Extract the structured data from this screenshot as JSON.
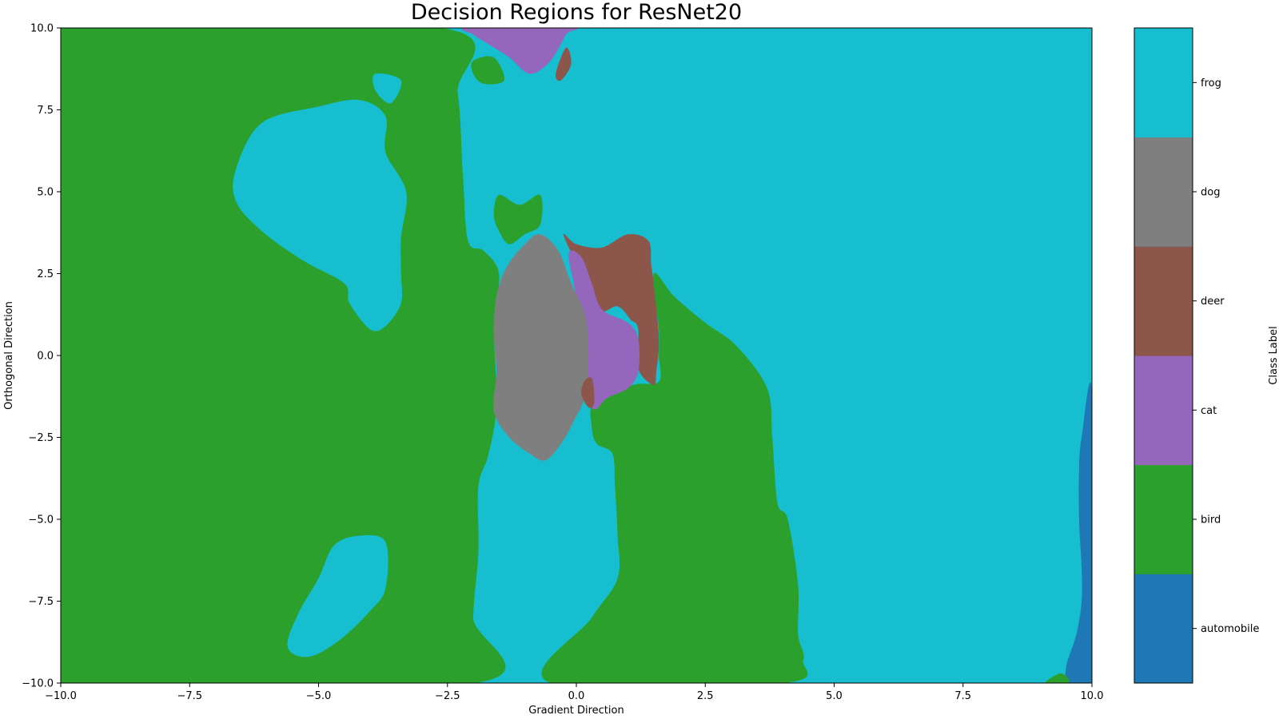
{
  "chart_data": {
    "type": "heatmap",
    "title": "Decision Regions for ResNet20",
    "xlabel": "Gradient Direction",
    "ylabel": "Orthogonal Direction",
    "xlim": [
      -10,
      10
    ],
    "ylim": [
      -10,
      10
    ],
    "xticks": [
      -10,
      -7.5,
      -5,
      -2.5,
      0,
      2.5,
      5,
      7.5,
      10
    ],
    "yticks": [
      -10,
      -7.5,
      -5,
      -2.5,
      0,
      2.5,
      5,
      7.5,
      10
    ],
    "xtick_labels": [
      "−10.0",
      "−7.5",
      "−5.0",
      "−2.5",
      "0.0",
      "2.5",
      "5.0",
      "7.5",
      "10.0"
    ],
    "ytick_labels": [
      "−10.0",
      "−7.5",
      "−5.0",
      "−2.5",
      "0.0",
      "2.5",
      "5.0",
      "7.5",
      "10.0"
    ],
    "background_class": "frog",
    "classes": [
      {
        "name": "automobile",
        "color": "#1f77b4"
      },
      {
        "name": "bird",
        "color": "#2ca02c"
      },
      {
        "name": "cat",
        "color": "#9467bd"
      },
      {
        "name": "deer",
        "color": "#8c564b"
      },
      {
        "name": "dog",
        "color": "#7f7f7f"
      },
      {
        "name": "frog",
        "color": "#17becf"
      }
    ],
    "colorbar_label": "Class Label",
    "regions": [
      {
        "class": "bird",
        "points": [
          [
            -10,
            10
          ],
          [
            -2.6,
            10
          ],
          [
            -2.3,
            8
          ],
          [
            -2.2,
            5.5
          ],
          [
            -2.1,
            3.5
          ],
          [
            -1.8,
            3.2
          ],
          [
            -1.5,
            2.5
          ],
          [
            -1.6,
            1
          ],
          [
            -1.55,
            -1.5
          ],
          [
            -1.7,
            -3
          ],
          [
            -1.9,
            -4
          ],
          [
            -1.9,
            -6
          ],
          [
            -2.0,
            -8
          ],
          [
            -1.95,
            -10
          ],
          [
            -10,
            -10
          ]
        ]
      },
      {
        "class": "frog",
        "points": [
          [
            -6.6,
            5.7
          ],
          [
            -6.1,
            7.1
          ],
          [
            -5,
            7.6
          ],
          [
            -4.2,
            7.8
          ],
          [
            -3.7,
            7.3
          ],
          [
            -3.7,
            6.2
          ],
          [
            -3.3,
            5
          ],
          [
            -3.4,
            3.6
          ],
          [
            -3.4,
            2.5
          ],
          [
            -3.4,
            1.6
          ],
          [
            -3.7,
            0.9
          ],
          [
            -4.0,
            0.8
          ],
          [
            -4.4,
            1.6
          ],
          [
            -4.5,
            2.2
          ],
          [
            -5.3,
            2.9
          ],
          [
            -6.1,
            3.8
          ],
          [
            -6.6,
            4.7
          ]
        ]
      },
      {
        "class": "frog",
        "points": [
          [
            -3.9,
            8.6
          ],
          [
            -3.4,
            8.4
          ],
          [
            -3.6,
            7.7
          ],
          [
            -3.9,
            8.1
          ]
        ]
      },
      {
        "class": "frog",
        "points": [
          [
            -5.6,
            -8.9
          ],
          [
            -5.2,
            -9.2
          ],
          [
            -4.6,
            -8.7
          ],
          [
            -4.0,
            -7.8
          ],
          [
            -3.7,
            -7.1
          ],
          [
            -3.7,
            -5.7
          ],
          [
            -4.2,
            -5.5
          ],
          [
            -4.7,
            -5.8
          ],
          [
            -5.0,
            -6.8
          ],
          [
            -5.4,
            -7.9
          ]
        ]
      },
      {
        "class": "bird",
        "points": [
          [
            -2.0,
            9.0
          ],
          [
            -1.6,
            9.1
          ],
          [
            -1.4,
            8.4
          ],
          [
            -1.8,
            8.3
          ],
          [
            -2.0,
            8.6
          ]
        ]
      },
      {
        "class": "bird",
        "points": [
          [
            -1.6,
            4.3
          ],
          [
            -1.5,
            4.9
          ],
          [
            -1.1,
            4.6
          ],
          [
            -0.7,
            4.9
          ],
          [
            -0.7,
            4.0
          ],
          [
            -1.0,
            3.7
          ],
          [
            -1.3,
            3.4
          ],
          [
            -1.5,
            3.8
          ]
        ]
      },
      {
        "class": "bird",
        "points": [
          [
            -0.5,
            -10
          ],
          [
            0.3,
            -8
          ],
          [
            0.8,
            -6.8
          ],
          [
            0.8,
            -5.5
          ],
          [
            0.75,
            -4
          ],
          [
            0.7,
            -3
          ],
          [
            0.4,
            -2.7
          ],
          [
            0.3,
            -2.2
          ],
          [
            0.35,
            -1.4
          ],
          [
            1.1,
            -0.9
          ],
          [
            1.6,
            -0.8
          ],
          [
            1.6,
            0
          ],
          [
            1.6,
            0.8
          ],
          [
            1.5,
            2.5
          ],
          [
            1.9,
            1.8
          ],
          [
            2.5,
            1
          ],
          [
            3.1,
            0.3
          ],
          [
            3.7,
            -1
          ],
          [
            3.8,
            -2.5
          ],
          [
            3.9,
            -4.5
          ],
          [
            4.1,
            -5
          ],
          [
            4.3,
            -7
          ],
          [
            4.3,
            -8.5
          ],
          [
            4.4,
            -9.3
          ],
          [
            4.0,
            -10
          ]
        ]
      },
      {
        "class": "cat",
        "points": [
          [
            -2.1,
            10
          ],
          [
            -0.1,
            10
          ],
          [
            -0.2,
            9.8
          ],
          [
            -0.5,
            9
          ],
          [
            -0.9,
            8.6
          ],
          [
            -1.3,
            9.1
          ],
          [
            -1.7,
            9.5
          ],
          [
            -2.0,
            9.8
          ]
        ]
      },
      {
        "class": "deer",
        "points": [
          [
            -0.4,
            8.6
          ],
          [
            -0.2,
            9.4
          ],
          [
            -0.1,
            8.9
          ],
          [
            -0.3,
            8.4
          ]
        ]
      },
      {
        "class": "deer",
        "points": [
          [
            -0.25,
            3.7
          ],
          [
            0,
            3.4
          ],
          [
            0.5,
            3.3
          ],
          [
            1.0,
            3.7
          ],
          [
            1.4,
            3.5
          ],
          [
            1.45,
            2.8
          ],
          [
            1.5,
            2.2
          ],
          [
            1.6,
            0.5
          ],
          [
            1.55,
            -0.5
          ],
          [
            1.5,
            -0.9
          ],
          [
            1.2,
            -0.4
          ],
          [
            1.2,
            0.8
          ],
          [
            1.05,
            1.1
          ],
          [
            0.8,
            1.5
          ],
          [
            0.4,
            1.4
          ],
          [
            0.0,
            2.8
          ]
        ]
      },
      {
        "class": "cat",
        "points": [
          [
            -0.15,
            3.1
          ],
          [
            0.1,
            3.0
          ],
          [
            0.3,
            2.2
          ],
          [
            0.5,
            1.4
          ],
          [
            1.0,
            1.0
          ],
          [
            1.2,
            0.5
          ],
          [
            1.2,
            -0.5
          ],
          [
            1.0,
            -1.0
          ],
          [
            0.6,
            -1.3
          ],
          [
            0.35,
            -1.65
          ],
          [
            0.15,
            -1.2
          ],
          [
            0.0,
            -0.8
          ],
          [
            0.0,
            1.6
          ]
        ]
      },
      {
        "class": "dog",
        "points": [
          [
            -0.7,
            3.7
          ],
          [
            -0.35,
            3.2
          ],
          [
            -0.1,
            2.2
          ],
          [
            0.2,
            1.0
          ],
          [
            0.2,
            -1.0
          ],
          [
            -0.05,
            -2.0
          ],
          [
            -0.3,
            -2.7
          ],
          [
            -0.6,
            -3.2
          ],
          [
            -0.9,
            -3.0
          ],
          [
            -1.3,
            -2.5
          ],
          [
            -1.6,
            -1.7
          ],
          [
            -1.55,
            -0.5
          ],
          [
            -1.6,
            0.7
          ],
          [
            -1.55,
            1.8
          ],
          [
            -1.35,
            2.7
          ],
          [
            -1.0,
            3.4
          ]
        ]
      },
      {
        "class": "deer",
        "points": [
          [
            0.15,
            -0.8
          ],
          [
            0.3,
            -0.7
          ],
          [
            0.35,
            -1.4
          ],
          [
            0.25,
            -1.6
          ],
          [
            0.1,
            -1.2
          ]
        ]
      },
      {
        "class": "automobile",
        "points": [
          [
            10,
            -1.2
          ],
          [
            9.8,
            -2.5
          ],
          [
            9.75,
            -3.5
          ],
          [
            9.75,
            -5
          ],
          [
            9.8,
            -6.5
          ],
          [
            9.8,
            -7.5
          ],
          [
            9.7,
            -8.5
          ],
          [
            9.5,
            -9.5
          ],
          [
            9.55,
            -10
          ],
          [
            10,
            -10
          ]
        ]
      },
      {
        "class": "bird",
        "points": [
          [
            9.1,
            -10
          ],
          [
            9.4,
            -9.7
          ],
          [
            9.55,
            -10
          ]
        ]
      }
    ]
  }
}
